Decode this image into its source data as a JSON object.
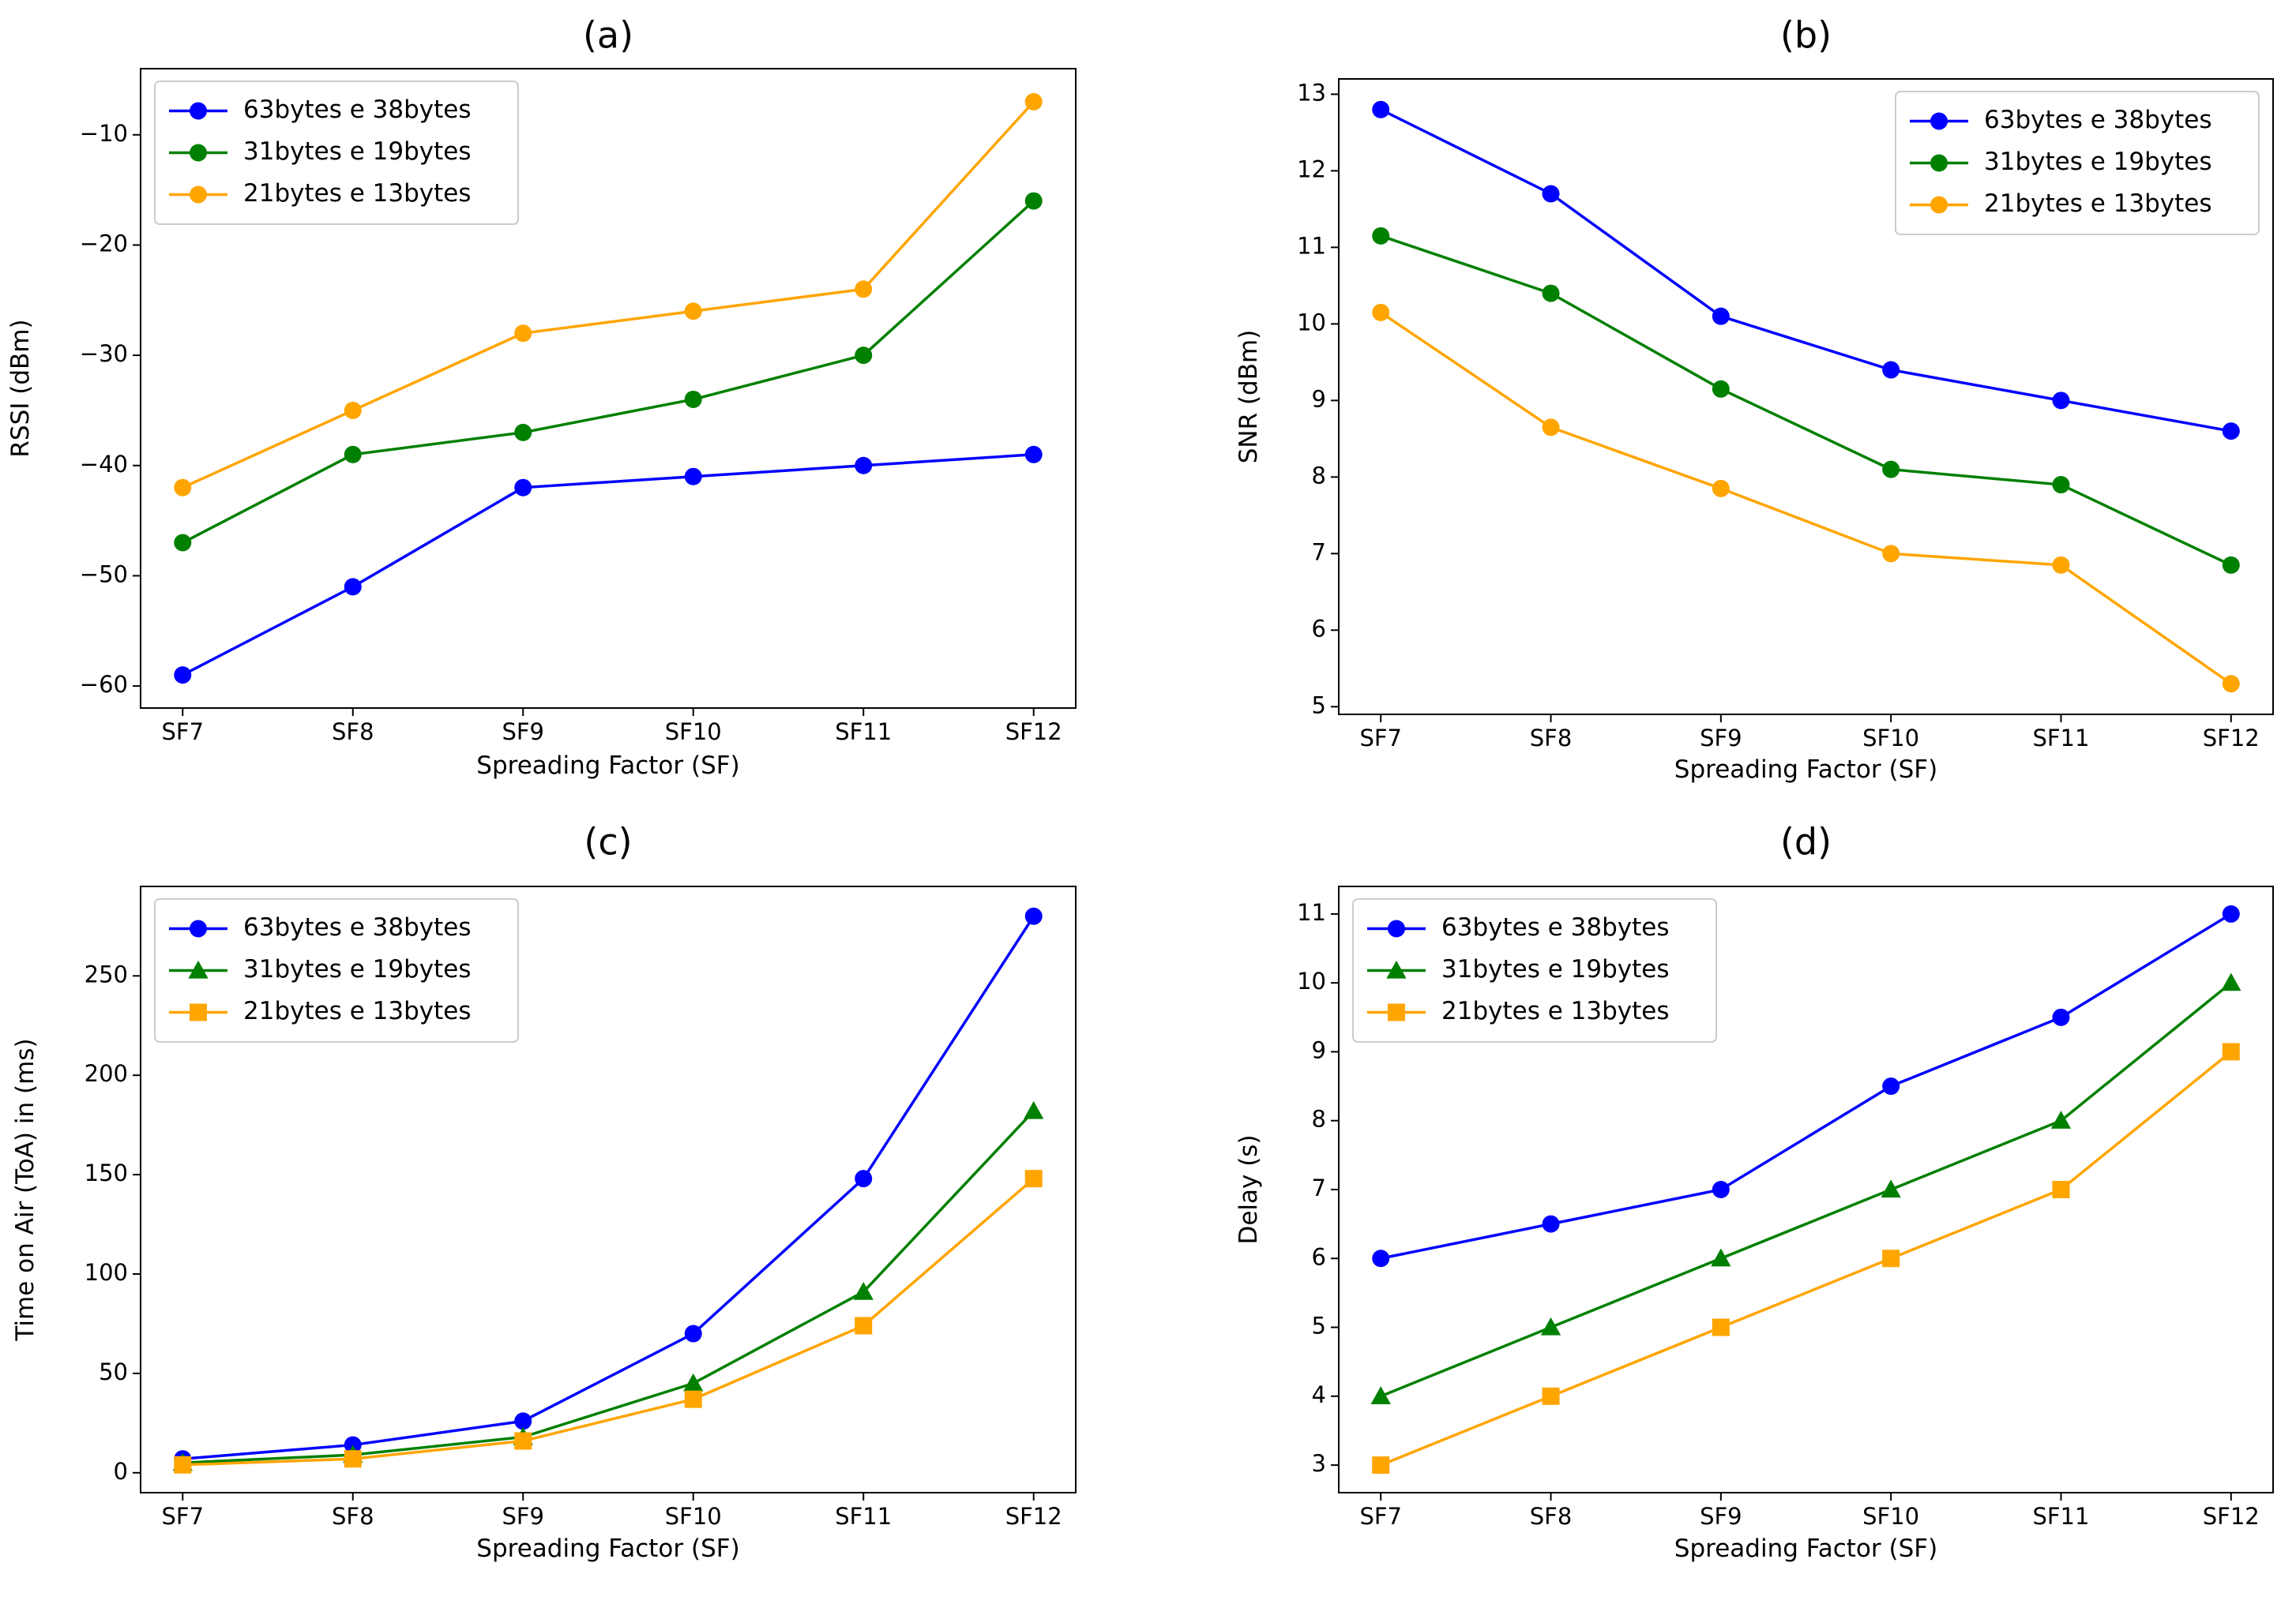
{
  "chart_data": [
    {
      "type": "line",
      "title": "(a)",
      "xlabel": "Spreading Factor (SF)",
      "ylabel": "RSSI (dBm)",
      "categories": [
        "SF7",
        "SF8",
        "SF9",
        "SF10",
        "SF11",
        "SF12"
      ],
      "ylim": [
        -62,
        -4
      ],
      "yticks": [
        -60,
        -50,
        -40,
        -30,
        -20,
        -10
      ],
      "ytick_labels": [
        "−60",
        "−50",
        "−40",
        "−30",
        "−20",
        "−10"
      ],
      "legend_loc": "upper-left",
      "series": [
        {
          "name": "63bytes e 38bytes",
          "color": "#0000ff",
          "marker": "circle",
          "values": [
            -59,
            -51,
            -42,
            -41,
            -40,
            -39
          ]
        },
        {
          "name": "31bytes e 19bytes",
          "color": "#008000",
          "marker": "circle",
          "values": [
            -47,
            -39,
            -37,
            -34,
            -30,
            -16
          ]
        },
        {
          "name": "21bytes e 13bytes",
          "color": "#ffa500",
          "marker": "circle",
          "values": [
            -42,
            -35,
            -28,
            -26,
            -24,
            -7
          ]
        }
      ]
    },
    {
      "type": "line",
      "title": "(b)",
      "xlabel": "Spreading Factor (SF)",
      "ylabel": "SNR (dBm)",
      "categories": [
        "SF7",
        "SF8",
        "SF9",
        "SF10",
        "SF11",
        "SF12"
      ],
      "ylim": [
        4.9,
        13.2
      ],
      "yticks": [
        5,
        6,
        7,
        8,
        9,
        10,
        11,
        12,
        13
      ],
      "ytick_labels": [
        "5",
        "6",
        "7",
        "8",
        "9",
        "10",
        "11",
        "12",
        "13"
      ],
      "legend_loc": "upper-right",
      "series": [
        {
          "name": "63bytes e 38bytes",
          "color": "#0000ff",
          "marker": "circle",
          "values": [
            12.8,
            11.7,
            10.1,
            9.4,
            9.0,
            8.6
          ]
        },
        {
          "name": "31bytes e 19bytes",
          "color": "#008000",
          "marker": "circle",
          "values": [
            11.15,
            10.4,
            9.15,
            8.1,
            7.9,
            6.85
          ]
        },
        {
          "name": "21bytes e 13bytes",
          "color": "#ffa500",
          "marker": "circle",
          "values": [
            10.15,
            8.65,
            7.85,
            7.0,
            6.85,
            5.3
          ]
        }
      ]
    },
    {
      "type": "line",
      "title": "(c)",
      "xlabel": "Spreading Factor (SF)",
      "ylabel": "Time on Air (ToA) in (ms)",
      "categories": [
        "SF7",
        "SF8",
        "SF9",
        "SF10",
        "SF11",
        "SF12"
      ],
      "ylim": [
        -10,
        295
      ],
      "yticks": [
        0,
        50,
        100,
        150,
        200,
        250
      ],
      "ytick_labels": [
        "0",
        "50",
        "100",
        "150",
        "200",
        "250"
      ],
      "legend_loc": "upper-left",
      "series": [
        {
          "name": "63bytes e 38bytes",
          "color": "#0000ff",
          "marker": "circle",
          "values": [
            7,
            14,
            26,
            70,
            148,
            280
          ]
        },
        {
          "name": "31bytes e 19bytes",
          "color": "#008000",
          "marker": "triangle",
          "values": [
            5,
            9,
            18,
            45,
            91,
            182
          ]
        },
        {
          "name": "21bytes e 13bytes",
          "color": "#ffa500",
          "marker": "square",
          "values": [
            4,
            7,
            16,
            37,
            74,
            148
          ]
        }
      ]
    },
    {
      "type": "line",
      "title": "(d)",
      "xlabel": "Spreading Factor (SF)",
      "ylabel": "Delay (s)",
      "categories": [
        "SF7",
        "SF8",
        "SF9",
        "SF10",
        "SF11",
        "SF12"
      ],
      "ylim": [
        2.6,
        11.4
      ],
      "yticks": [
        3,
        4,
        5,
        6,
        7,
        8,
        9,
        10,
        11
      ],
      "ytick_labels": [
        "3",
        "4",
        "5",
        "6",
        "7",
        "8",
        "9",
        "10",
        "11"
      ],
      "legend_loc": "upper-left",
      "series": [
        {
          "name": "63bytes e 38bytes",
          "color": "#0000ff",
          "marker": "circle",
          "values": [
            6,
            6.5,
            7,
            8.5,
            9.5,
            11
          ]
        },
        {
          "name": "31bytes e 19bytes",
          "color": "#008000",
          "marker": "triangle",
          "values": [
            4,
            5,
            6,
            7,
            8,
            10
          ]
        },
        {
          "name": "21bytes e 13bytes",
          "color": "#ffa500",
          "marker": "square",
          "values": [
            3,
            4,
            5,
            6,
            7,
            9
          ]
        }
      ]
    }
  ]
}
